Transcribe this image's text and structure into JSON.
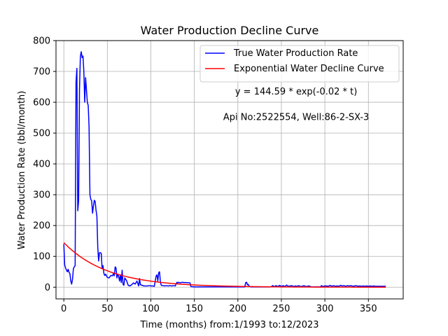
{
  "chart_data": {
    "type": "line",
    "title": "Water Production Decline Curve",
    "xlabel": "Time (months) from:1/1993 to:12/2023",
    "ylabel": "Water Production Rate (bbl/month)",
    "xlim": [
      -9,
      390
    ],
    "ylim": [
      -38,
      800
    ],
    "xticks": [
      0,
      50,
      100,
      150,
      200,
      250,
      300,
      350
    ],
    "yticks": [
      0,
      100,
      200,
      300,
      400,
      500,
      600,
      700,
      800
    ],
    "grid": true,
    "legend": "top-right",
    "annotations": [
      {
        "text": "y = 144.59 * exp(-0.02 * t)",
        "x": 267,
        "y": 635
      },
      {
        "text": "Api No:2522554, Well:86-2-SX-3",
        "x": 267,
        "y": 553
      }
    ],
    "series": [
      {
        "name": "True Water Production Rate",
        "color": "#0000ff",
        "points": [
          [
            0,
            140
          ],
          [
            1,
            72
          ],
          [
            2,
            62
          ],
          [
            3,
            56
          ],
          [
            4,
            50
          ],
          [
            5,
            58
          ],
          [
            6,
            48
          ],
          [
            7,
            44
          ],
          [
            8,
            20
          ],
          [
            9,
            10
          ],
          [
            10,
            26
          ],
          [
            11,
            60
          ],
          [
            12,
            66
          ],
          [
            13,
            70
          ],
          [
            14,
            665
          ],
          [
            15,
            710
          ],
          [
            16,
            248
          ],
          [
            17,
            280
          ],
          [
            18,
            640
          ],
          [
            19,
            748
          ],
          [
            20,
            764
          ],
          [
            21,
            745
          ],
          [
            22,
            750
          ],
          [
            23,
            700
          ],
          [
            24,
            600
          ],
          [
            25,
            680
          ],
          [
            26,
            640
          ],
          [
            27,
            600
          ],
          [
            28,
            590
          ],
          [
            29,
            520
          ],
          [
            30,
            300
          ],
          [
            31,
            285
          ],
          [
            32,
            280
          ],
          [
            33,
            240
          ],
          [
            34,
            262
          ],
          [
            35,
            282
          ],
          [
            36,
            278
          ],
          [
            37,
            250
          ],
          [
            38,
            230
          ],
          [
            39,
            130
          ],
          [
            40,
            85
          ],
          [
            41,
            112
          ],
          [
            42,
            112
          ],
          [
            43,
            110
          ],
          [
            44,
            60
          ],
          [
            45,
            70
          ],
          [
            46,
            45
          ],
          [
            47,
            38
          ],
          [
            48,
            42
          ],
          [
            50,
            32
          ],
          [
            52,
            30
          ],
          [
            54,
            38
          ],
          [
            56,
            37
          ],
          [
            57,
            45
          ],
          [
            58,
            37
          ],
          [
            59,
            66
          ],
          [
            60,
            62
          ],
          [
            61,
            30
          ],
          [
            62,
            42
          ],
          [
            63,
            35
          ],
          [
            64,
            20
          ],
          [
            65,
            40
          ],
          [
            66,
            15
          ],
          [
            67,
            55
          ],
          [
            68,
            10
          ],
          [
            69,
            6
          ],
          [
            70,
            30
          ],
          [
            72,
            22
          ],
          [
            74,
            6
          ],
          [
            76,
            4
          ],
          [
            78,
            8
          ],
          [
            80,
            14
          ],
          [
            82,
            10
          ],
          [
            84,
            20
          ],
          [
            86,
            4
          ],
          [
            87,
            28
          ],
          [
            88,
            8
          ],
          [
            90,
            6
          ],
          [
            92,
            4
          ],
          [
            94,
            4
          ],
          [
            96,
            4
          ],
          [
            98,
            5
          ],
          [
            100,
            4
          ],
          [
            102,
            4
          ],
          [
            104,
            3
          ],
          [
            106,
            36
          ],
          [
            107,
            40
          ],
          [
            108,
            20
          ],
          [
            109,
            47
          ],
          [
            110,
            50
          ],
          [
            111,
            16
          ],
          [
            112,
            6
          ],
          [
            114,
            5
          ],
          [
            116,
            4
          ],
          [
            118,
            5
          ],
          [
            120,
            4
          ],
          [
            122,
            5
          ],
          [
            124,
            4
          ],
          [
            126,
            5
          ],
          [
            128,
            4
          ],
          [
            130,
            16
          ],
          [
            131,
            14
          ],
          [
            132,
            16
          ],
          [
            134,
            14
          ],
          [
            136,
            16
          ],
          [
            138,
            15
          ],
          [
            140,
            15
          ],
          [
            145,
            14
          ],
          [
            146,
            2
          ],
          [
            150,
            1
          ],
          [
            160,
            1
          ],
          [
            170,
            1
          ],
          [
            180,
            1
          ],
          [
            190,
            1
          ],
          [
            200,
            1
          ],
          [
            208,
            1
          ],
          [
            209,
            15
          ],
          [
            210,
            16
          ],
          [
            211,
            8
          ],
          [
            212,
            9
          ],
          [
            213,
            3
          ],
          [
            215,
            1
          ],
          [
            220,
            1
          ],
          [
            230,
            1
          ],
          [
            238,
            1
          ],
          [
            240,
            5
          ],
          [
            242,
            2
          ],
          [
            244,
            5
          ],
          [
            246,
            2
          ],
          [
            248,
            6
          ],
          [
            250,
            2
          ],
          [
            252,
            5
          ],
          [
            254,
            2
          ],
          [
            256,
            7
          ],
          [
            258,
            3
          ],
          [
            260,
            4
          ],
          [
            262,
            5
          ],
          [
            264,
            2
          ],
          [
            266,
            4
          ],
          [
            268,
            3
          ],
          [
            270,
            5
          ],
          [
            272,
            2
          ],
          [
            274,
            3
          ],
          [
            276,
            5
          ],
          [
            278,
            2
          ],
          [
            280,
            3
          ],
          [
            282,
            4
          ],
          [
            284,
            1
          ],
          [
            290,
            1
          ],
          [
            295,
            1
          ],
          [
            296,
            5
          ],
          [
            298,
            2
          ],
          [
            300,
            4
          ],
          [
            302,
            4
          ],
          [
            304,
            3
          ],
          [
            306,
            6
          ],
          [
            308,
            3
          ],
          [
            310,
            5
          ],
          [
            312,
            3
          ],
          [
            314,
            4
          ],
          [
            316,
            3
          ],
          [
            318,
            6
          ],
          [
            320,
            4
          ],
          [
            322,
            5
          ],
          [
            324,
            3
          ],
          [
            326,
            5
          ],
          [
            328,
            4
          ],
          [
            330,
            5
          ],
          [
            332,
            3
          ],
          [
            334,
            4
          ],
          [
            336,
            5
          ],
          [
            338,
            3
          ],
          [
            340,
            4
          ],
          [
            342,
            3
          ],
          [
            344,
            4
          ],
          [
            346,
            3
          ],
          [
            348,
            4
          ],
          [
            350,
            3
          ],
          [
            352,
            4
          ],
          [
            354,
            3
          ],
          [
            356,
            4
          ],
          [
            358,
            3
          ],
          [
            360,
            3
          ],
          [
            362,
            3
          ],
          [
            364,
            3
          ],
          [
            366,
            3
          ],
          [
            368,
            3
          ],
          [
            370,
            3
          ]
        ]
      },
      {
        "name": "Exponential Water Decline Curve",
        "color": "#ff0000",
        "fit": {
          "a": 144.59,
          "b": 0.02,
          "x_start": 0,
          "x_end": 370
        }
      }
    ]
  }
}
